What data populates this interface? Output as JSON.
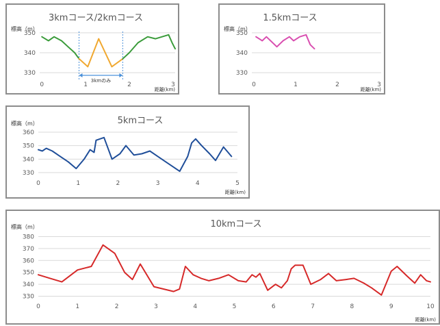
{
  "chart_data": [
    {
      "type": "line",
      "title": "3kmコース/2kmコース",
      "ylabel": "標高（m）",
      "xlabel": "距離(km)",
      "xlim": [
        -0.05,
        3.05
      ],
      "ylim": [
        328,
        352
      ],
      "xticks": [
        0,
        1,
        2,
        3
      ],
      "yticks": [
        330,
        340,
        350
      ],
      "grid": true,
      "series": [
        {
          "color": "#3a9b3a",
          "points": [
            [
              0,
              348
            ],
            [
              0.15,
              346
            ],
            [
              0.28,
              348
            ],
            [
              0.45,
              346
            ],
            [
              0.6,
              343
            ],
            [
              0.75,
              340
            ],
            [
              0.85,
              337
            ]
          ]
        },
        {
          "color": "#f0a830",
          "points": [
            [
              0.85,
              337
            ],
            [
              1.05,
              333
            ],
            [
              1.3,
              347
            ],
            [
              1.6,
              333
            ],
            [
              1.85,
              337
            ]
          ]
        },
        {
          "color": "#3a9b3a",
          "points": [
            [
              1.85,
              337
            ],
            [
              2.0,
              340
            ],
            [
              2.2,
              345
            ],
            [
              2.42,
              348
            ],
            [
              2.6,
              347
            ],
            [
              2.75,
              348
            ],
            [
              2.9,
              349
            ],
            [
              2.98,
              345
            ],
            [
              3.05,
              342
            ]
          ]
        }
      ],
      "annotation": {
        "text": "3kmのみ",
        "x_start": 0.85,
        "x_end": 1.85,
        "color": "#4a90d9"
      }
    },
    {
      "type": "line",
      "title": "1.5kmコース",
      "ylabel": "標高（m）",
      "xlabel": "距離(km)",
      "xlim": [
        -0.05,
        3.05
      ],
      "ylim": [
        328,
        352
      ],
      "xticks": [
        0,
        1,
        2,
        3
      ],
      "yticks": [
        330,
        340,
        350
      ],
      "grid": true,
      "series": [
        {
          "color": "#d94fb0",
          "points": [
            [
              0.05,
              348
            ],
            [
              0.2,
              346
            ],
            [
              0.3,
              348
            ],
            [
              0.4,
              346
            ],
            [
              0.55,
              343
            ],
            [
              0.7,
              346
            ],
            [
              0.85,
              348
            ],
            [
              0.95,
              346
            ],
            [
              1.1,
              348
            ],
            [
              1.25,
              349
            ],
            [
              1.35,
              344
            ],
            [
              1.45,
              342
            ]
          ]
        }
      ]
    },
    {
      "type": "line",
      "title": "5kmコース",
      "ylabel": "標高（m）",
      "xlabel": "距離(km)",
      "xlim": [
        0,
        5
      ],
      "ylim": [
        328,
        362
      ],
      "xticks": [
        0,
        1,
        2,
        3,
        4,
        5
      ],
      "yticks": [
        330,
        340,
        350,
        360
      ],
      "grid": true,
      "series": [
        {
          "color": "#1f4e99",
          "points": [
            [
              0,
              347
            ],
            [
              0.1,
              346
            ],
            [
              0.2,
              348
            ],
            [
              0.35,
              346
            ],
            [
              0.55,
              342
            ],
            [
              0.75,
              338
            ],
            [
              0.95,
              333
            ],
            [
              1.15,
              340
            ],
            [
              1.3,
              347
            ],
            [
              1.4,
              345
            ],
            [
              1.45,
              354
            ],
            [
              1.55,
              355
            ],
            [
              1.65,
              356
            ],
            [
              1.85,
              340
            ],
            [
              2.05,
              344
            ],
            [
              2.2,
              350
            ],
            [
              2.4,
              343
            ],
            [
              2.6,
              344
            ],
            [
              2.8,
              346
            ],
            [
              3.0,
              342
            ],
            [
              3.2,
              338
            ],
            [
              3.4,
              334
            ],
            [
              3.55,
              331
            ],
            [
              3.75,
              342
            ],
            [
              3.85,
              352
            ],
            [
              3.95,
              355
            ],
            [
              4.1,
              350
            ],
            [
              4.3,
              344
            ],
            [
              4.45,
              339
            ],
            [
              4.65,
              349
            ],
            [
              4.85,
              342
            ]
          ]
        }
      ]
    },
    {
      "type": "line",
      "title": "10kmコース",
      "ylabel": "標高（m）",
      "xlabel": "距離(km)",
      "xlim": [
        0,
        10
      ],
      "ylim": [
        328,
        382
      ],
      "xticks": [
        0,
        1,
        2,
        3,
        4,
        5,
        6,
        7,
        8,
        9,
        10
      ],
      "yticks": [
        330,
        340,
        350,
        360,
        370,
        380
      ],
      "grid": true,
      "series": [
        {
          "color": "#d62828",
          "points": [
            [
              0,
              348
            ],
            [
              0.3,
              345
            ],
            [
              0.6,
              342
            ],
            [
              1.0,
              352
            ],
            [
              1.35,
              355
            ],
            [
              1.65,
              373
            ],
            [
              1.95,
              366
            ],
            [
              2.2,
              350
            ],
            [
              2.4,
              344
            ],
            [
              2.6,
              357
            ],
            [
              2.95,
              338
            ],
            [
              3.2,
              336
            ],
            [
              3.45,
              334
            ],
            [
              3.6,
              336
            ],
            [
              3.75,
              355
            ],
            [
              3.95,
              348
            ],
            [
              4.15,
              345
            ],
            [
              4.35,
              343
            ],
            [
              4.6,
              345
            ],
            [
              4.85,
              348
            ],
            [
              5.1,
              343
            ],
            [
              5.3,
              342
            ],
            [
              5.45,
              348
            ],
            [
              5.55,
              346
            ],
            [
              5.65,
              349
            ],
            [
              5.85,
              335
            ],
            [
              6.05,
              340
            ],
            [
              6.2,
              337
            ],
            [
              6.35,
              343
            ],
            [
              6.45,
              353
            ],
            [
              6.55,
              356
            ],
            [
              6.75,
              356
            ],
            [
              6.95,
              340
            ],
            [
              7.2,
              344
            ],
            [
              7.4,
              349
            ],
            [
              7.6,
              343
            ],
            [
              7.85,
              344
            ],
            [
              8.05,
              345
            ],
            [
              8.3,
              341
            ],
            [
              8.5,
              337
            ],
            [
              8.75,
              331
            ],
            [
              9.0,
              351
            ],
            [
              9.15,
              355
            ],
            [
              9.4,
              347
            ],
            [
              9.6,
              341
            ],
            [
              9.75,
              348
            ],
            [
              9.9,
              343
            ],
            [
              10.0,
              342
            ]
          ]
        }
      ]
    }
  ]
}
